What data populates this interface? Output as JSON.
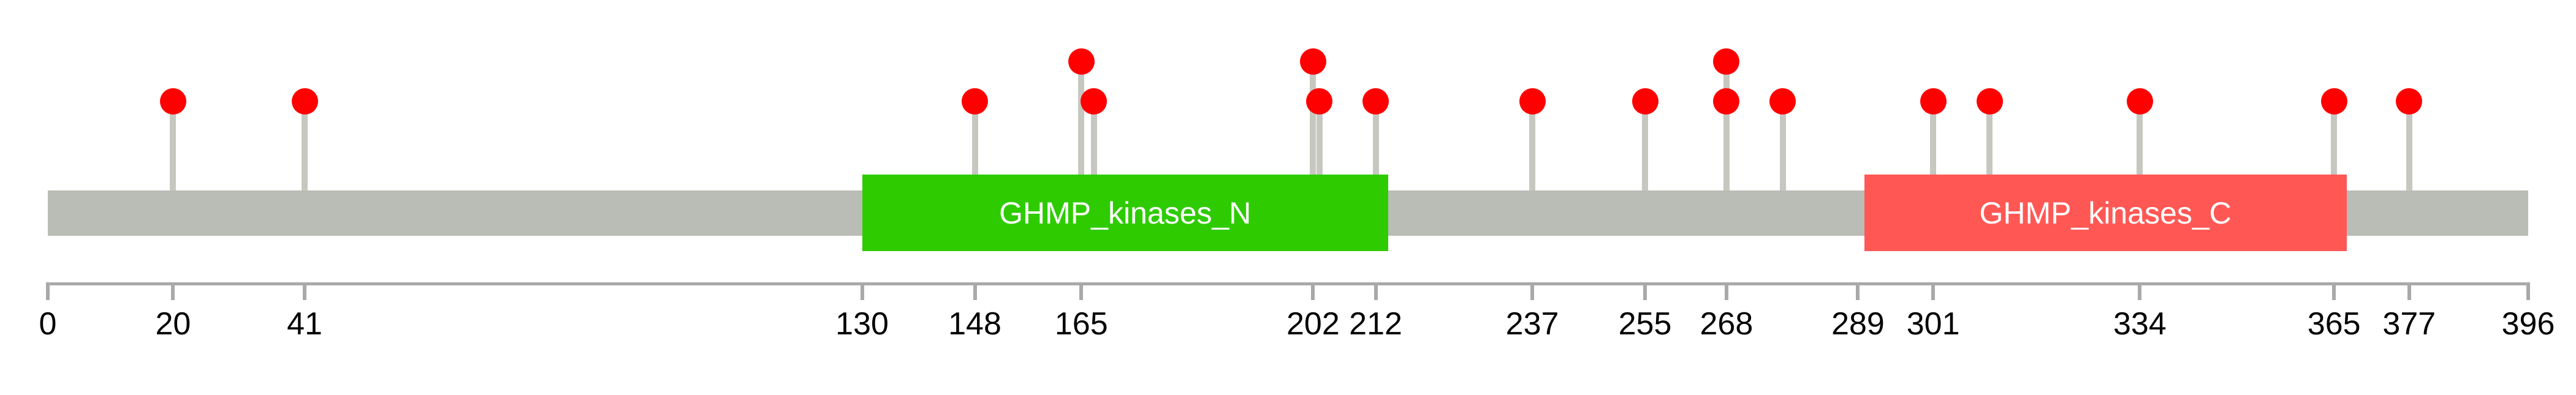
{
  "figure": {
    "title": "",
    "kind": "protein mutation lollipop diagram"
  },
  "chart_data": {
    "type": "lollipop",
    "title": "",
    "xlabel": "",
    "ylabel": "",
    "protein_length": 396,
    "x_range": [
      0,
      396
    ],
    "grid": false,
    "legend_position": "none",
    "backbone": {
      "start": 0,
      "end": 396,
      "color": "#babdb5"
    },
    "domains": [
      {
        "name": "GHMP_kinases_N",
        "start": 130,
        "end": 214,
        "color": "#2ecb01",
        "label_color": "#ffffff"
      },
      {
        "name": "GHMP_kinases_C",
        "start": 290,
        "end": 367,
        "color": "#ff5854",
        "label_color": "#ffffff"
      }
    ],
    "mutations": [
      {
        "pos": 20,
        "level": 1
      },
      {
        "pos": 41,
        "level": 1
      },
      {
        "pos": 148,
        "level": 1
      },
      {
        "pos": 165,
        "level": 2
      },
      {
        "pos": 167,
        "level": 1
      },
      {
        "pos": 202,
        "level": 2
      },
      {
        "pos": 203,
        "level": 1
      },
      {
        "pos": 212,
        "level": 1
      },
      {
        "pos": 237,
        "level": 1
      },
      {
        "pos": 255,
        "level": 1
      },
      {
        "pos": 268,
        "level": 2
      },
      {
        "pos": 268,
        "level": 1
      },
      {
        "pos": 277,
        "level": 1
      },
      {
        "pos": 301,
        "level": 1
      },
      {
        "pos": 310,
        "level": 1
      },
      {
        "pos": 334,
        "level": 1
      },
      {
        "pos": 365,
        "level": 1
      },
      {
        "pos": 377,
        "level": 1
      }
    ],
    "marker_color": "#ff0000",
    "stick_color": "#c6c8c0",
    "axis": {
      "tick_positions": [
        0,
        20,
        41,
        130,
        148,
        165,
        202,
        212,
        237,
        255,
        268,
        289,
        301,
        334,
        365,
        377,
        396
      ],
      "tick_labels": [
        "0",
        "20",
        "41",
        "130",
        "148",
        "165",
        "202",
        "212",
        "237",
        "255",
        "268",
        "289",
        "301",
        "334",
        "365",
        "377",
        "396"
      ],
      "color": "#a9a9a9",
      "label_color": "#000000"
    }
  }
}
